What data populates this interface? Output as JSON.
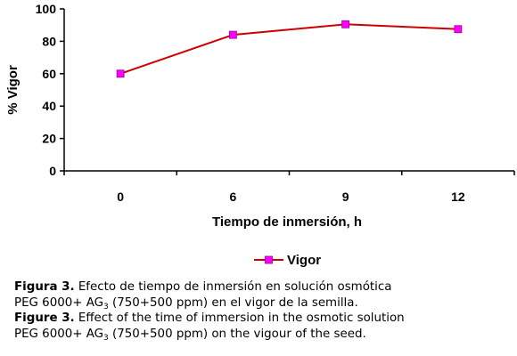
{
  "chart_data": {
    "type": "line",
    "categories": [
      "0",
      "6",
      "9",
      "12"
    ],
    "series": [
      {
        "name": "Vigor",
        "values": [
          60,
          84,
          90.5,
          87.5
        ]
      }
    ],
    "xlabel": "Tiempo de inmersión, h",
    "ylabel": "% Vigor",
    "ylim": [
      0,
      100
    ],
    "yticks": [
      0,
      20,
      40,
      60,
      80,
      100
    ],
    "grid": false,
    "legend": "bottom-center",
    "line_color": "#cc0000",
    "marker_color": "#ff00ff",
    "marker_shape": "square"
  },
  "caption": {
    "es": {
      "label": "Figura 3.",
      "line1": "Efecto de tiempo de inmersión en solución osmótica",
      "line2_a": "PEG 6000+ AG",
      "line2_sub": "3",
      "line2_b": " (750+500 ppm) en el vigor de la semilla."
    },
    "en": {
      "label": "Figure 3.",
      "line1": "Effect of the time of immersion in the osmotic solution",
      "line2_a": "PEG 6000+ AG",
      "line2_sub": "3",
      "line2_b": " (750+500 ppm) on the vigour of the seed."
    }
  }
}
